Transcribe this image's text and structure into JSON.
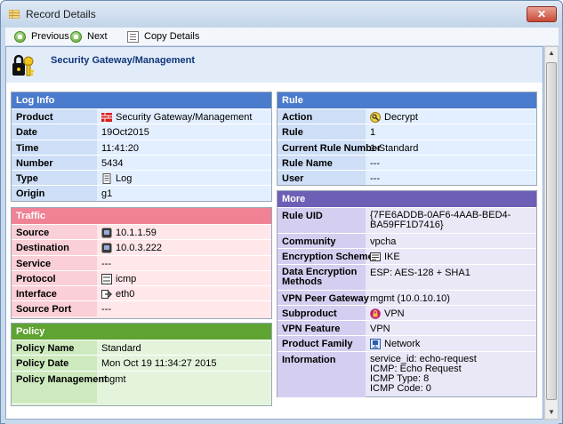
{
  "window": {
    "title": "Record Details",
    "close_label": "✕"
  },
  "toolbar": {
    "previous_label": "Previous",
    "next_label": "Next",
    "copy_label": "Copy Details"
  },
  "header": {
    "title": "Security Gateway/Management",
    "icon": "key-lock-icon"
  },
  "log_info": {
    "title": "Log Info",
    "rows": [
      {
        "key": "Product",
        "value": "Security Gateway/Management",
        "icon": "firewall-icon"
      },
      {
        "key": "Date",
        "value": "19Oct2015"
      },
      {
        "key": "Time",
        "value": "11:41:20"
      },
      {
        "key": "Number",
        "value": "5434"
      },
      {
        "key": "Type",
        "value": "Log",
        "icon": "log-icon"
      },
      {
        "key": "Origin",
        "value": "g1"
      }
    ]
  },
  "traffic": {
    "title": "Traffic",
    "rows": [
      {
        "key": "Source",
        "value": "10.1.1.59",
        "icon": "host-icon"
      },
      {
        "key": "Destination",
        "value": "10.0.3.222",
        "icon": "host-icon"
      },
      {
        "key": "Service",
        "value": "---"
      },
      {
        "key": "Protocol",
        "value": "icmp",
        "icon": "icmp-icon"
      },
      {
        "key": "Interface",
        "value": "eth0",
        "icon": "interface-icon"
      },
      {
        "key": "Source Port",
        "value": "---"
      }
    ]
  },
  "policy": {
    "title": "Policy",
    "rows": [
      {
        "key": "Policy Name",
        "value": "Standard"
      },
      {
        "key": "Policy Date",
        "value": "Mon Oct 19 11:34:27 2015"
      },
      {
        "key": "Policy Management",
        "value": "mgmt"
      }
    ]
  },
  "rule": {
    "title": "Rule",
    "rows": [
      {
        "key": "Action",
        "value": "Decrypt",
        "icon": "decrypt-icon"
      },
      {
        "key": "Rule",
        "value": "1"
      },
      {
        "key": "Current Rule Number",
        "value": "1-Standard"
      },
      {
        "key": "Rule Name",
        "value": "---"
      },
      {
        "key": "User",
        "value": "---"
      }
    ]
  },
  "more": {
    "title": "More",
    "rule_uid_key": "Rule UID",
    "rule_uid_line1": "{7FE6ADDB-0AF6-4AAB-BED4-",
    "rule_uid_line2": "BA59FF1D7416}",
    "community_key": "Community",
    "community_value": "vpcha",
    "encryption_scheme_key": "Encryption Scheme",
    "encryption_scheme_value": "IKE",
    "data_encryption_key_line1": "Data Encryption",
    "data_encryption_key_line2": "Methods",
    "data_encryption_value": "ESP: AES-128 + SHA1",
    "vpn_peer_gateway_key": "VPN Peer Gateway",
    "vpn_peer_gateway_value": "mgmt (10.0.10.10)",
    "subproduct_key": "Subproduct",
    "subproduct_value": "VPN",
    "vpn_feature_key": "VPN Feature",
    "vpn_feature_value": "VPN",
    "product_family_key": "Product Family",
    "product_family_value": "Network",
    "information_key": "Information",
    "information_lines": [
      "service_id: echo-request",
      "ICMP: Echo Request",
      "ICMP Type: 8",
      "ICMP Code: 0"
    ]
  }
}
